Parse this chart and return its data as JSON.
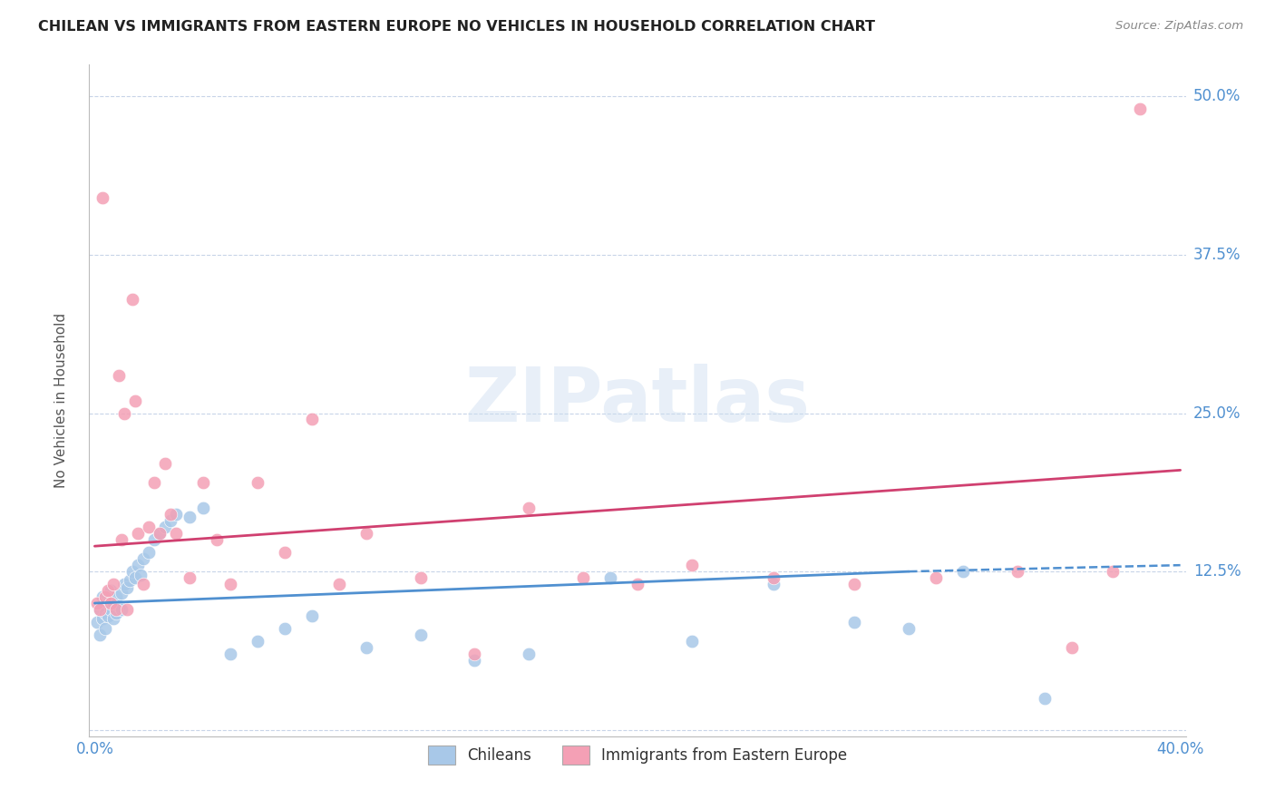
{
  "title": "CHILEAN VS IMMIGRANTS FROM EASTERN EUROPE NO VEHICLES IN HOUSEHOLD CORRELATION CHART",
  "source": "Source: ZipAtlas.com",
  "ylabel": "No Vehicles in Household",
  "xlim": [
    0.0,
    0.4
  ],
  "ylim": [
    -0.005,
    0.525
  ],
  "yticks": [
    0.0,
    0.125,
    0.25,
    0.375,
    0.5
  ],
  "ytick_labels": [
    "",
    "12.5%",
    "25.0%",
    "37.5%",
    "50.0%"
  ],
  "xticks": [
    0.0,
    0.1,
    0.2,
    0.3,
    0.4
  ],
  "xtick_labels": [
    "0.0%",
    "",
    "",
    "",
    "40.0%"
  ],
  "color_chilean": "#a8c8e8",
  "color_eastern": "#f4a0b5",
  "color_line_chilean": "#5090d0",
  "color_line_eastern": "#d04070",
  "color_axis_labels": "#5090d0",
  "background_color": "#ffffff",
  "grid_color": "#c8d4e8",
  "chilean_x": [
    0.001,
    0.002,
    0.002,
    0.003,
    0.003,
    0.004,
    0.004,
    0.005,
    0.005,
    0.006,
    0.006,
    0.007,
    0.007,
    0.008,
    0.008,
    0.009,
    0.01,
    0.01,
    0.011,
    0.012,
    0.013,
    0.014,
    0.015,
    0.016,
    0.017,
    0.018,
    0.02,
    0.022,
    0.024,
    0.026,
    0.028,
    0.03,
    0.035,
    0.04,
    0.05,
    0.06,
    0.07,
    0.08,
    0.1,
    0.12,
    0.14,
    0.16,
    0.19,
    0.22,
    0.25,
    0.28,
    0.3,
    0.32,
    0.35
  ],
  "chilean_y": [
    0.085,
    0.095,
    0.075,
    0.105,
    0.088,
    0.092,
    0.08,
    0.1,
    0.09,
    0.11,
    0.095,
    0.088,
    0.1,
    0.105,
    0.092,
    0.098,
    0.095,
    0.108,
    0.115,
    0.112,
    0.118,
    0.125,
    0.12,
    0.13,
    0.122,
    0.135,
    0.14,
    0.15,
    0.155,
    0.16,
    0.165,
    0.17,
    0.168,
    0.175,
    0.06,
    0.07,
    0.08,
    0.09,
    0.065,
    0.075,
    0.055,
    0.06,
    0.12,
    0.07,
    0.115,
    0.085,
    0.08,
    0.125,
    0.025
  ],
  "eastern_x": [
    0.001,
    0.002,
    0.003,
    0.004,
    0.005,
    0.006,
    0.007,
    0.008,
    0.009,
    0.01,
    0.011,
    0.012,
    0.014,
    0.015,
    0.016,
    0.018,
    0.02,
    0.022,
    0.024,
    0.026,
    0.028,
    0.03,
    0.035,
    0.04,
    0.045,
    0.05,
    0.06,
    0.07,
    0.08,
    0.09,
    0.1,
    0.12,
    0.14,
    0.16,
    0.18,
    0.2,
    0.22,
    0.25,
    0.28,
    0.31,
    0.34,
    0.36,
    0.375,
    0.385
  ],
  "eastern_y": [
    0.1,
    0.095,
    0.42,
    0.105,
    0.11,
    0.1,
    0.115,
    0.095,
    0.28,
    0.15,
    0.25,
    0.095,
    0.34,
    0.26,
    0.155,
    0.115,
    0.16,
    0.195,
    0.155,
    0.21,
    0.17,
    0.155,
    0.12,
    0.195,
    0.15,
    0.115,
    0.195,
    0.14,
    0.245,
    0.115,
    0.155,
    0.12,
    0.06,
    0.175,
    0.12,
    0.115,
    0.13,
    0.12,
    0.115,
    0.12,
    0.125,
    0.065,
    0.125,
    0.49
  ],
  "chi_trend_x0": 0.0,
  "chi_trend_x_solid_end": 0.3,
  "chi_trend_x1": 0.4,
  "chi_trend_y0": 0.1,
  "chi_trend_y_solid_end": 0.125,
  "chi_trend_y1": 0.13,
  "eas_trend_x0": 0.0,
  "eas_trend_x1": 0.4,
  "eas_trend_y0": 0.145,
  "eas_trend_y1": 0.205
}
